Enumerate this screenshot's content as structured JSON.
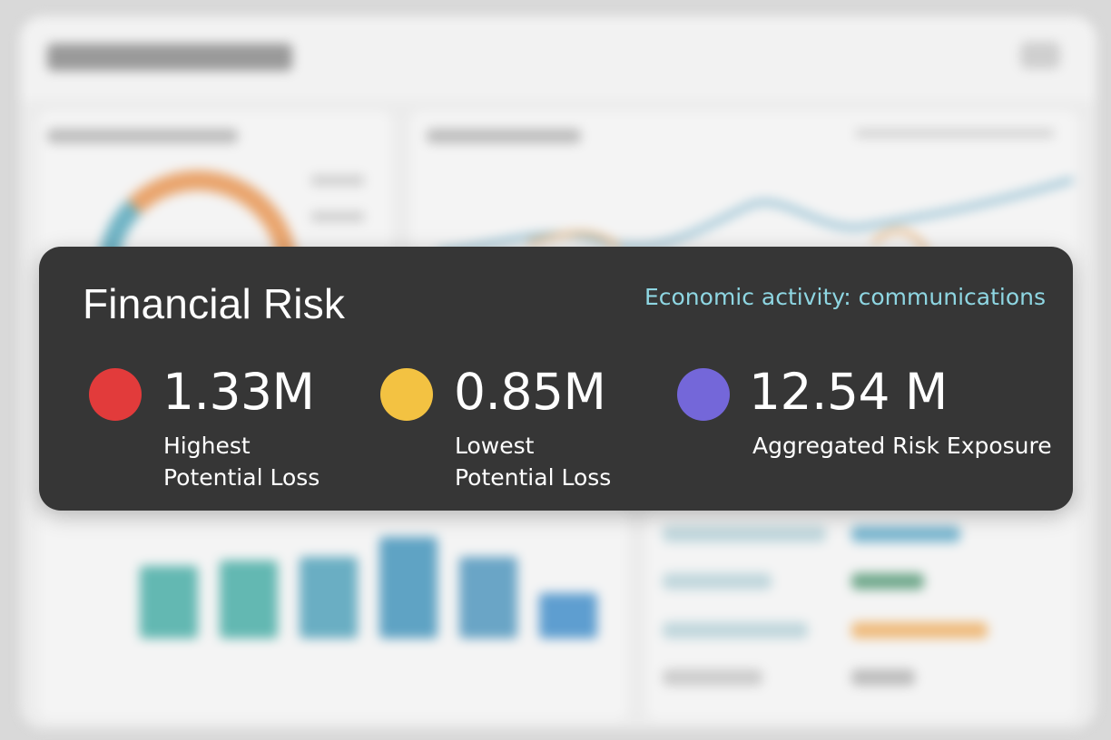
{
  "card": {
    "title": "Financial Risk",
    "subtitle": "Economic activity: communications"
  },
  "metrics": [
    {
      "value": "1.33M",
      "label_line1": "Highest",
      "label_line2": "Potential Loss",
      "color": "#e23b3b"
    },
    {
      "value": "0.85M",
      "label_line1": "Lowest",
      "label_line2": "Potential Loss",
      "color": "#f3c242"
    },
    {
      "value": "12.54 M",
      "label_line1": "Aggregated Risk Exposure",
      "label_line2": "",
      "color": "#7467d9"
    }
  ],
  "colors": {
    "card_background": "#363636",
    "subtitle_accent": "#8ed6e2",
    "page_background": "#d9d9d9"
  }
}
